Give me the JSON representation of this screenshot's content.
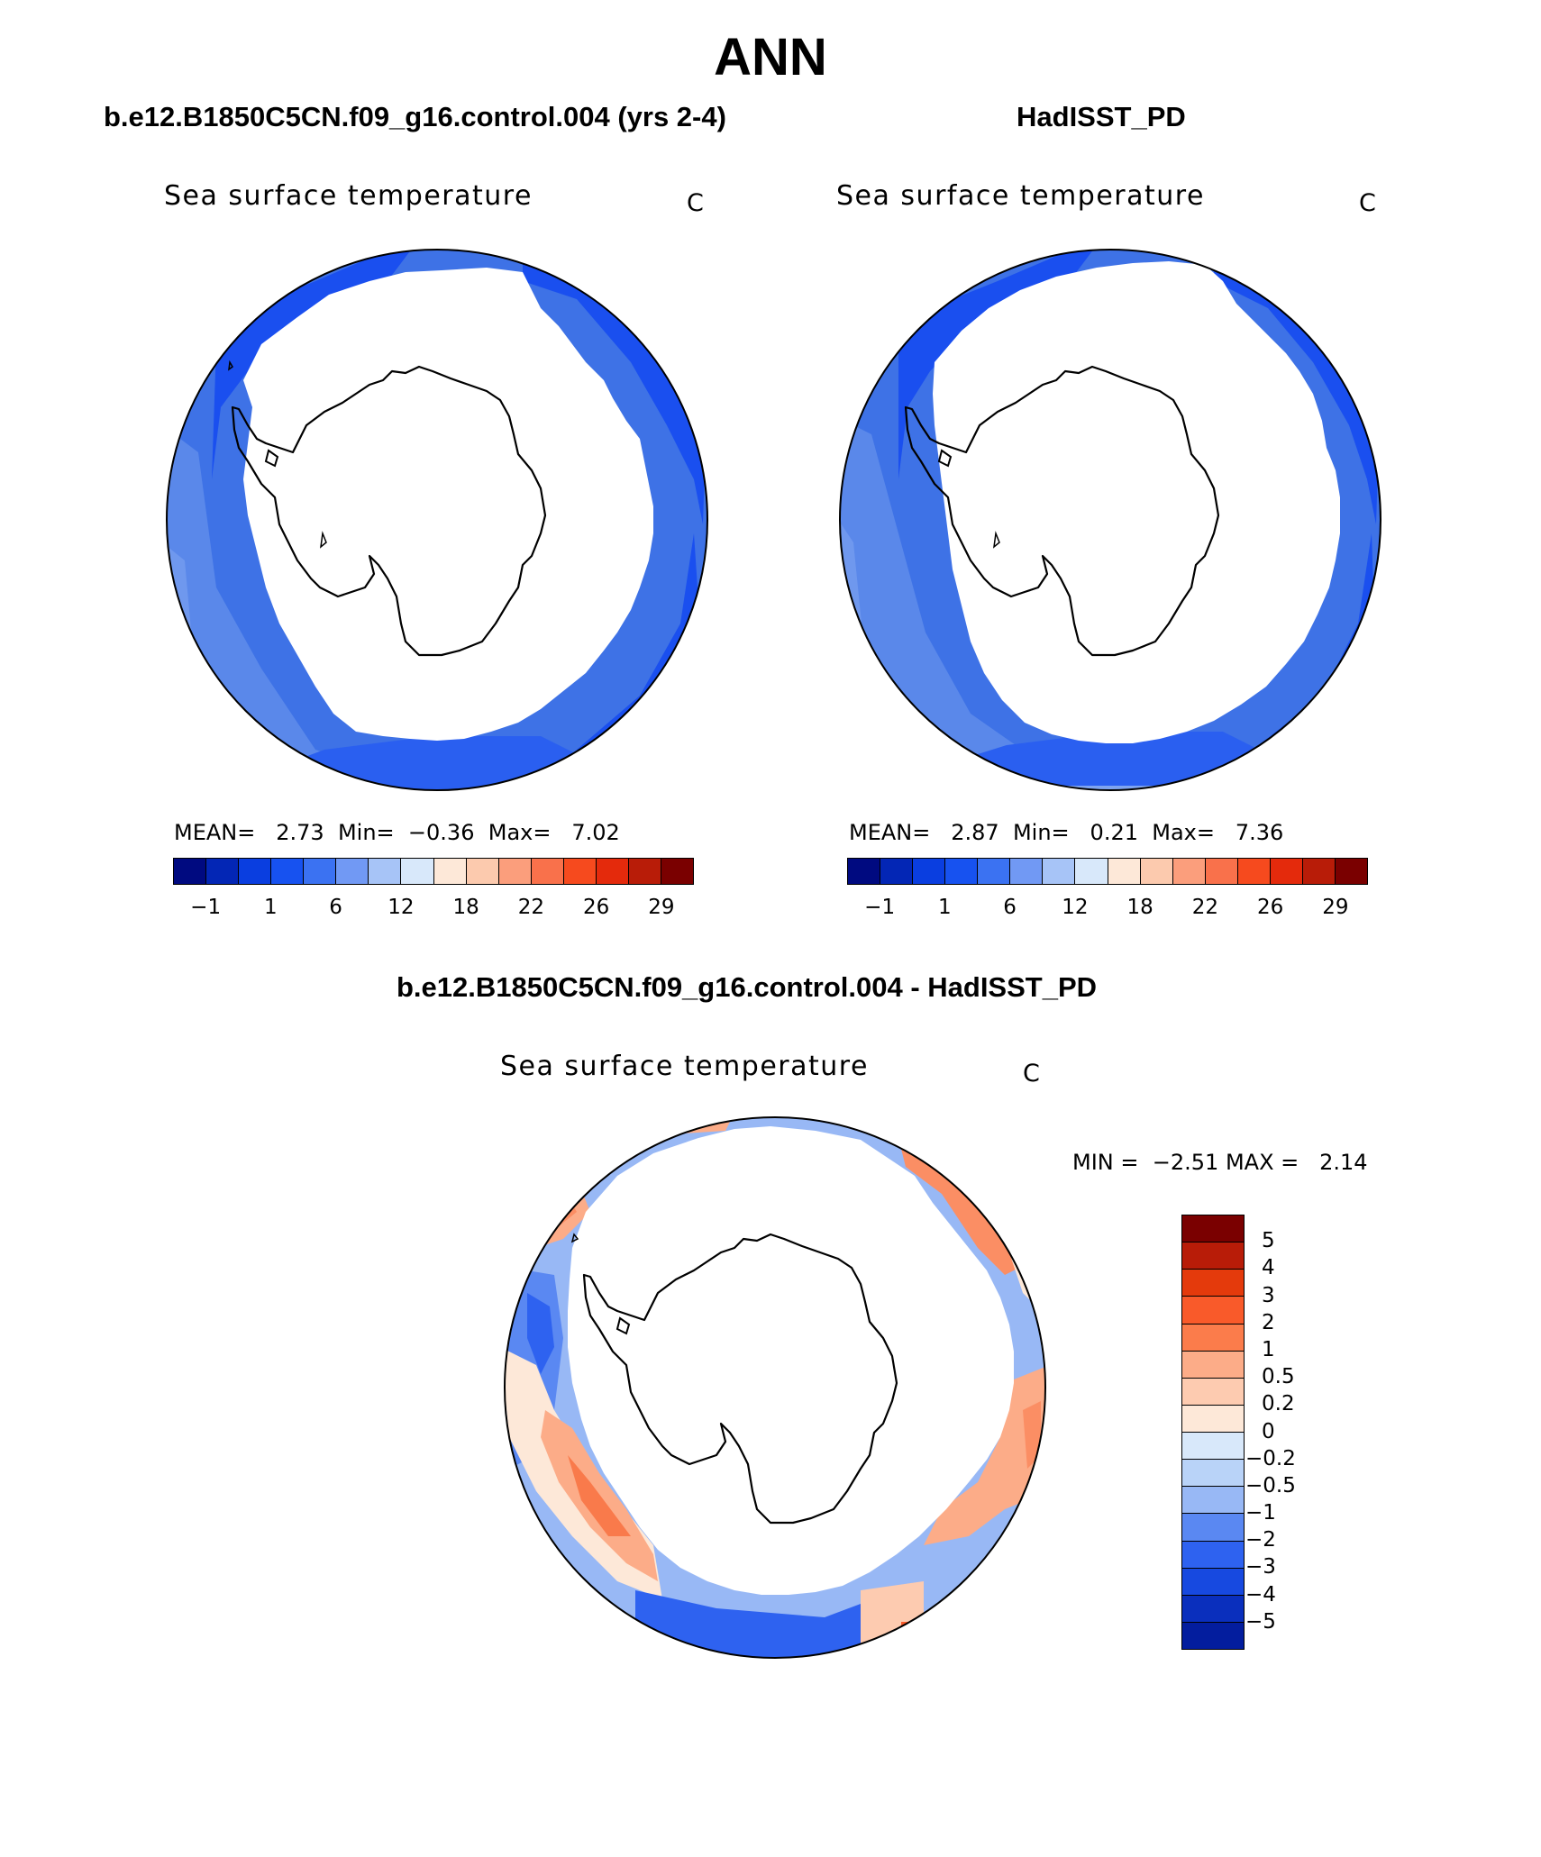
{
  "title": "ANN",
  "panels": {
    "left": {
      "case_title": "b.e12.B1850C5CN.f09_g16.control.004 (yrs 2-4)",
      "map_title": "Sea surface temperature",
      "units": "C",
      "stats": {
        "mean_label": "MEAN=",
        "mean": "2.73",
        "min_label": "Min=",
        "min": "−0.36",
        "max_label": "Max=",
        "max": "7.02"
      }
    },
    "right": {
      "case_title": "HadISST_PD",
      "map_title": "Sea surface temperature",
      "units": "C",
      "stats": {
        "mean_label": "MEAN=",
        "mean": "2.87",
        "min_label": "Min=",
        "min": "0.21",
        "max_label": "Max=",
        "max": "7.36"
      }
    },
    "diff": {
      "case_title": "b.e12.B1850C5CN.f09_g16.control.004 - HadISST_PD",
      "map_title": "Sea surface temperature",
      "units": "C",
      "stats": {
        "min_label": "MIN =",
        "min": "−2.51",
        "max_label": "MAX =",
        "max": "2.14"
      }
    }
  },
  "sst_colorbar": {
    "colors": [
      "#000a80",
      "#0326b5",
      "#0a3ee0",
      "#1752f0",
      "#3b72f2",
      "#7199f4",
      "#a7c4f7",
      "#d8e8fa",
      "#fde8d8",
      "#fccaae",
      "#fb9e7c",
      "#f9714b",
      "#f64a1e",
      "#e42a0c",
      "#b81c08",
      "#7a0000"
    ],
    "tick_labels": [
      "−1",
      "1",
      "6",
      "12",
      "18",
      "22",
      "26",
      "29"
    ]
  },
  "diff_colorbar": {
    "colors": [
      "#7a0000",
      "#b81c08",
      "#e43a0c",
      "#f95a2a",
      "#fb7c4b",
      "#fcac88",
      "#fdcbb0",
      "#fde8d8",
      "#d8e8fa",
      "#b9d3f8",
      "#98b8f5",
      "#5a88f2",
      "#2e62f0",
      "#1749e0",
      "#0a2fbd",
      "#031d9e",
      "#000a80"
    ],
    "tick_labels": [
      "5",
      "4",
      "3",
      "2",
      "1",
      "0.5",
      "0.2",
      "0",
      "−0.2",
      "−0.5",
      "−1",
      "−2",
      "−3",
      "−4",
      "−5"
    ]
  }
}
